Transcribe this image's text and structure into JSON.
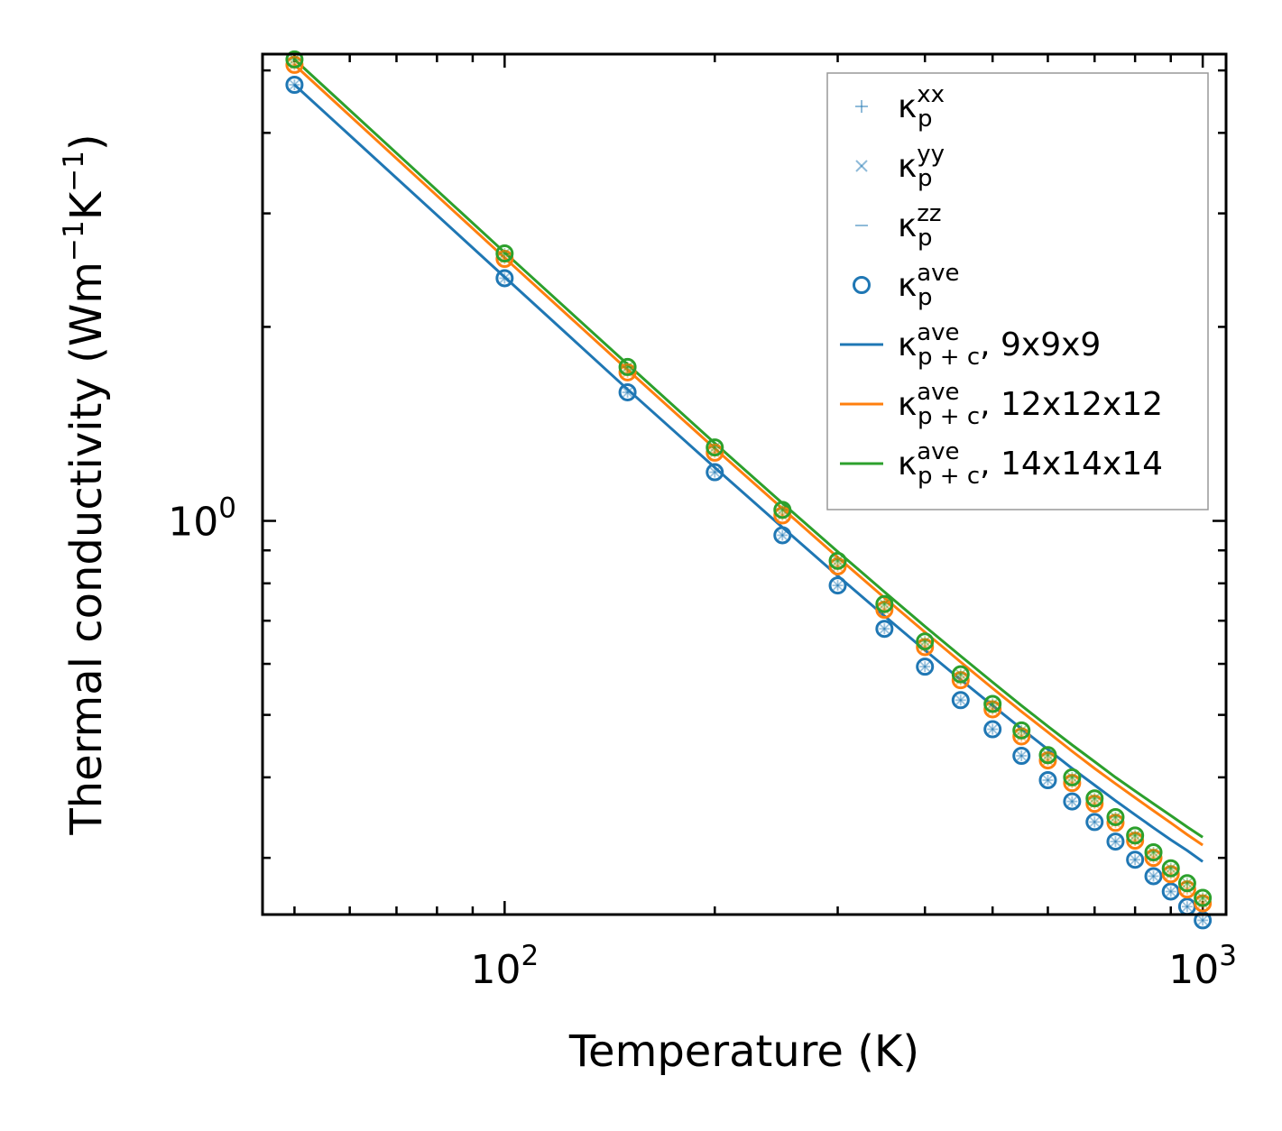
{
  "chart_data": {
    "type": "line",
    "xscale": "log",
    "yscale": "log",
    "xlabel": "Temperature (K)",
    "ylabel": {
      "base": "Thermal conductivity (Wm",
      "exp1": "−1",
      "mid": "K",
      "exp2": "−1",
      "end": ")"
    },
    "xlim": [
      45,
      1080
    ],
    "ylim": [
      0.245,
      5.3
    ],
    "xticks": [
      {
        "value": 100,
        "base": "10",
        "exp": "2"
      },
      {
        "value": 1000,
        "base": "10",
        "exp": "3"
      }
    ],
    "yticks": [
      {
        "value": 1,
        "base": "10",
        "exp": "0"
      }
    ],
    "x": [
      50,
      100,
      150,
      200,
      250,
      300,
      350,
      400,
      450,
      500,
      550,
      600,
      650,
      700,
      750,
      800,
      850,
      900,
      950,
      1000
    ],
    "markers": [
      {
        "name": "9x9x9",
        "color": "#1f77b4",
        "values": [
          4.75,
          2.38,
          1.583,
          1.19,
          0.95,
          0.794,
          0.68,
          0.594,
          0.527,
          0.475,
          0.432,
          0.396,
          0.367,
          0.341,
          0.318,
          0.298,
          0.281,
          0.266,
          0.252,
          0.24
        ]
      },
      {
        "name": "12x12x12",
        "color": "#ff7f0e",
        "values": [
          5.1,
          2.55,
          1.7,
          1.276,
          1.02,
          0.85,
          0.728,
          0.637,
          0.566,
          0.51,
          0.463,
          0.425,
          0.392,
          0.364,
          0.34,
          0.319,
          0.3,
          0.283,
          0.268,
          0.255
        ]
      },
      {
        "name": "14x14x14",
        "color": "#2ca02c",
        "values": [
          5.2,
          2.6,
          1.733,
          1.3,
          1.04,
          0.867,
          0.743,
          0.65,
          0.578,
          0.52,
          0.473,
          0.433,
          0.4,
          0.371,
          0.347,
          0.325,
          0.306,
          0.289,
          0.274,
          0.26
        ]
      }
    ],
    "series": [
      {
        "name": "κp+c ave, 9x9x9",
        "color": "#1f77b4",
        "values": [
          4.75,
          2.39,
          1.6,
          1.21,
          0.977,
          0.822,
          0.712,
          0.63,
          0.567,
          0.517,
          0.476,
          0.442,
          0.413,
          0.389,
          0.368,
          0.35,
          0.334,
          0.32,
          0.308,
          0.296
        ]
      },
      {
        "name": "κp+c ave, 12x12x12",
        "color": "#ff7f0e",
        "values": [
          5.1,
          2.56,
          1.716,
          1.295,
          1.045,
          0.878,
          0.76,
          0.672,
          0.604,
          0.55,
          0.506,
          0.47,
          0.439,
          0.413,
          0.391,
          0.372,
          0.355,
          0.34,
          0.326,
          0.314
        ]
      },
      {
        "name": "κp+c ave, 14x14x14",
        "color": "#2ca02c",
        "values": [
          5.2,
          2.61,
          1.75,
          1.32,
          1.065,
          0.896,
          0.776,
          0.686,
          0.617,
          0.562,
          0.517,
          0.48,
          0.449,
          0.423,
          0.4,
          0.381,
          0.364,
          0.349,
          0.335,
          0.323
        ]
      }
    ],
    "legend": {
      "placement": "top-right",
      "entries": [
        {
          "symbol": "+",
          "kappa": "κ",
          "sub": "p",
          "sup": "xx",
          "suffix": "",
          "color": "#1f77b4",
          "style": "faint-marker"
        },
        {
          "symbol": "×",
          "kappa": "κ",
          "sub": "p",
          "sup": "yy",
          "suffix": "",
          "color": "#1f77b4",
          "style": "faint-marker"
        },
        {
          "symbol": "–",
          "kappa": "κ",
          "sub": "p",
          "sup": "zz",
          "suffix": "",
          "color": "#1f77b4",
          "style": "faint-marker"
        },
        {
          "symbol": "o",
          "kappa": "κ",
          "sub": "p",
          "sup": "ave",
          "suffix": "",
          "color": "#1f77b4",
          "style": "circle"
        },
        {
          "symbol": "line",
          "kappa": "κ",
          "sub": "p + c",
          "sup": "ave",
          "suffix": ", 9x9x9",
          "color": "#1f77b4",
          "style": "line"
        },
        {
          "symbol": "line",
          "kappa": "κ",
          "sub": "p + c",
          "sup": "ave",
          "suffix": ", 12x12x12",
          "color": "#ff7f0e",
          "style": "line"
        },
        {
          "symbol": "line",
          "kappa": "κ",
          "sub": "p + c",
          "sup": "ave",
          "suffix": ", 14x14x14",
          "color": "#2ca02c",
          "style": "line"
        }
      ]
    }
  }
}
